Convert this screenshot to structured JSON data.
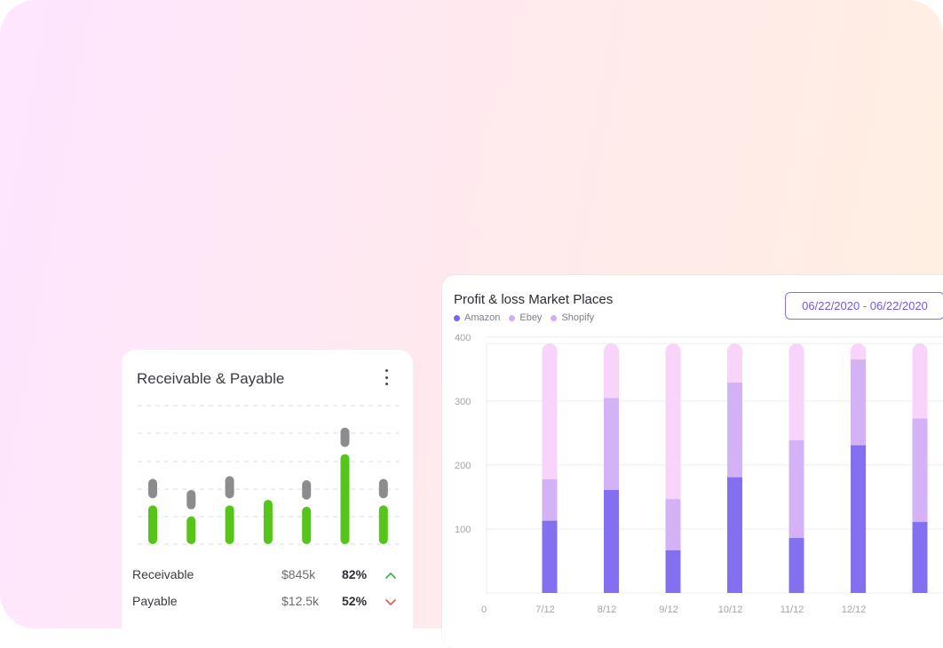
{
  "profit_loss": {
    "title": "Profit & loss Market Places",
    "date_range": "06/22/2020 - 06/22/2020",
    "legend": [
      {
        "name": "Amazon",
        "color": "#7b63ee"
      },
      {
        "name": "Ebey",
        "color": "#cfaef5"
      },
      {
        "name": "Shopify",
        "color": "#cfaef5"
      }
    ]
  },
  "receivable_payable": {
    "title": "Receivable & Payable",
    "menu_icon": "kebab-menu-icon",
    "rows": [
      {
        "label": "Receivable",
        "amount": "$845k",
        "percent": "82%",
        "trend": "up",
        "trend_color": "#3bb54a"
      },
      {
        "label": "Payable",
        "amount": "$12.5k",
        "percent": "52%",
        "trend": "down",
        "trend_color": "#e8605f"
      }
    ]
  },
  "chart_data": [
    {
      "type": "bar",
      "title": "Profit & loss Market Places",
      "stacked": true,
      "categories": [
        "7/12",
        "8/12",
        "9/12",
        "10/12",
        "11/12",
        "12/12",
        ""
      ],
      "series": [
        {
          "name": "Amazon",
          "color": "#8370f0",
          "values": [
            113,
            161,
            67,
            181,
            86,
            231,
            111
          ]
        },
        {
          "name": "Ebey",
          "color": "#d4b2f6",
          "values": [
            65,
            144,
            80,
            148,
            153,
            134,
            162
          ]
        },
        {
          "name": "Shopify",
          "color": "#f8d4fa",
          "values": [
            212,
            85,
            243,
            61,
            151,
            25,
            117
          ]
        }
      ],
      "yticks": [
        100,
        200,
        300,
        400
      ],
      "xorigin_label": "0",
      "ylim": [
        0,
        390
      ],
      "grid": true
    },
    {
      "type": "bar",
      "stacked": false,
      "series": [
        {
          "name": "Receivable",
          "color": "#55c51a",
          "values": [
            0.28,
            0.2,
            0.28,
            0.32,
            0.27,
            0.65,
            0.28
          ]
        },
        {
          "name": "Payable",
          "color": "#8c8c8e",
          "values": [
            0.14,
            0.14,
            0.16,
            0,
            0.14,
            0.14,
            0.14
          ]
        }
      ],
      "ylim": [
        0,
        1
      ],
      "grid": true
    }
  ]
}
